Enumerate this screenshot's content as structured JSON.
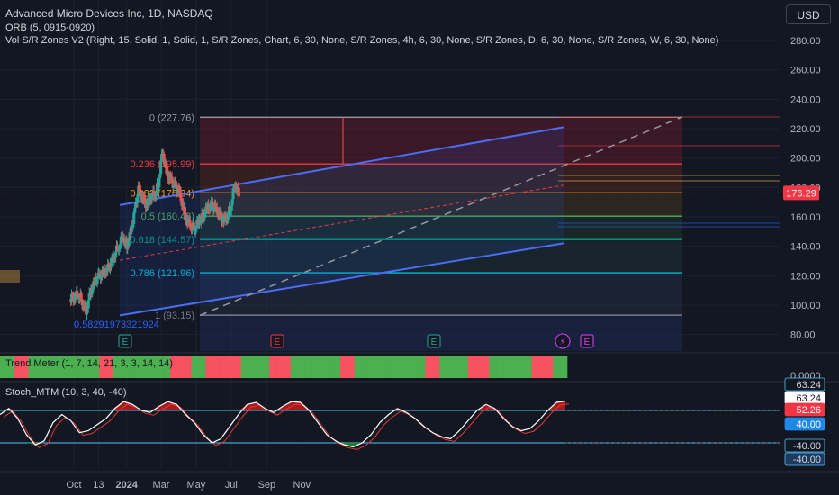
{
  "header": {
    "symbol_title": "Advanced Micro Devices Inc, 1D, NASDAQ",
    "indicator_1": "ORB (5, 0915-0920)",
    "indicator_2": "Vol S/R Zones V2 (Right, 15, Solid, 1, Solid, 1, S/R Zones, Chart, 6, 30, None, S/R Zones, 4h, 6, 30, None, S/R Zones, D, 6, 30, None, S/R Zones, W, 6, 30, None)"
  },
  "currency_button": "USD",
  "colors": {
    "background": "#131722",
    "up_candle": "#26a69a",
    "down_candle": "#ef5350",
    "channel": "#4a6cf7",
    "grid": "#1e222d",
    "trend_green": "#4caf50",
    "trend_red": "#f7525f",
    "stoch_fill_up": "#b71c1c",
    "stoch_fill_down": "#1b8a2a"
  },
  "chart_data": {
    "type": "candlestick",
    "symbol": "AMD",
    "interval": "1D",
    "exchange": "NASDAQ",
    "x_tick_labels": [
      "Oct",
      "13",
      "2024",
      "Mar",
      "May",
      "Jul",
      "Sep",
      "Nov"
    ],
    "y_tick_labels": [
      "280.00",
      "260.00",
      "240.00",
      "220.00",
      "200.00",
      "180.00",
      "160.00",
      "140.00",
      "120.00",
      "100.00",
      "80.00"
    ],
    "ylim": [
      72,
      292
    ],
    "last_price": "176.29",
    "fib_levels": [
      {
        "label": "0 (227.76)",
        "value": 227.76,
        "color": "#9598a1"
      },
      {
        "label": "0.236 (195.99)",
        "value": 195.99,
        "color": "#f23645"
      },
      {
        "label": "0.382 (176.34)",
        "value": 176.34,
        "color": "#ff9800"
      },
      {
        "label": "0.5 (160.46)",
        "value": 160.46,
        "color": "#4caf50"
      },
      {
        "label": "0.618 (144.57)",
        "value": 144.57,
        "color": "#089981"
      },
      {
        "label": "0.786 (121.96)",
        "value": 121.96,
        "color": "#00bcd4"
      },
      {
        "label": "1 (93.15)",
        "value": 93.15,
        "color": "#787b86"
      }
    ],
    "extra_label": "0.58291973321924",
    "event_markers": [
      "E",
      "E",
      "E",
      "E"
    ],
    "lightning_marker": "⚡",
    "price_series": [
      [
        "2023-09-25",
        104
      ],
      [
        "2023-10-02",
        106
      ],
      [
        "2023-10-09",
        108
      ],
      [
        "2023-10-16",
        103
      ],
      [
        "2023-10-23",
        96
      ],
      [
        "2023-10-30",
        108
      ],
      [
        "2023-11-06",
        115
      ],
      [
        "2023-11-13",
        119
      ],
      [
        "2023-11-20",
        121
      ],
      [
        "2023-11-27",
        123
      ],
      [
        "2023-12-04",
        128
      ],
      [
        "2023-12-11",
        134
      ],
      [
        "2023-12-18",
        140
      ],
      [
        "2023-12-26",
        147
      ],
      [
        "2024-01-02",
        140
      ],
      [
        "2024-01-08",
        148
      ],
      [
        "2024-01-16",
        164
      ],
      [
        "2024-01-22",
        178
      ],
      [
        "2024-01-29",
        173
      ],
      [
        "2024-02-05",
        168
      ],
      [
        "2024-02-12",
        174
      ],
      [
        "2024-02-20",
        176
      ],
      [
        "2024-02-26",
        183
      ],
      [
        "2024-03-04",
        205
      ],
      [
        "2024-03-11",
        190
      ],
      [
        "2024-03-18",
        185
      ],
      [
        "2024-03-25",
        181
      ],
      [
        "2024-04-01",
        178
      ],
      [
        "2024-04-08",
        168
      ],
      [
        "2024-04-15",
        158
      ],
      [
        "2024-04-22",
        155
      ],
      [
        "2024-04-29",
        152
      ],
      [
        "2024-05-06",
        158
      ],
      [
        "2024-05-13",
        160
      ],
      [
        "2024-05-20",
        165
      ],
      [
        "2024-05-28",
        168
      ],
      [
        "2024-06-03",
        166
      ],
      [
        "2024-06-10",
        162
      ],
      [
        "2024-06-17",
        158
      ],
      [
        "2024-06-24",
        160
      ],
      [
        "2024-07-01",
        167
      ],
      [
        "2024-07-08",
        183
      ],
      [
        "2024-07-15",
        176
      ]
    ]
  },
  "trend_meter": {
    "label": "Trend Meter (1, 7, 14, 21, 3, 3, 14, 14)",
    "zero_label": "0.0000",
    "states": [
      "G",
      "G",
      "R",
      "R",
      "G",
      "G",
      "G",
      "G",
      "G",
      "G",
      "G",
      "G",
      "G",
      "G",
      "R",
      "R",
      "G",
      "G",
      "G",
      "G",
      "G",
      "G",
      "G",
      "G",
      "R",
      "R",
      "R",
      "G",
      "G",
      "R",
      "R",
      "R",
      "R",
      "R",
      "G",
      "G",
      "G",
      "G",
      "R",
      "R",
      "R",
      "G",
      "G",
      "G",
      "G",
      "G",
      "G",
      "G",
      "R",
      "R",
      "G",
      "G",
      "G",
      "G",
      "G",
      "G",
      "G",
      "G",
      "G",
      "G",
      "R",
      "R",
      "G",
      "G",
      "G",
      "G",
      "R",
      "R",
      "R",
      "G",
      "G",
      "G",
      "G",
      "G",
      "G",
      "R",
      "R",
      "R",
      "G",
      "G"
    ]
  },
  "stoch_mtm": {
    "label": "Stoch_MTM (10, 3, 40, -40)",
    "axis_labels": [
      "63.24",
      "63.24",
      "52.26",
      "40.00",
      "-40.00",
      "-40.00"
    ],
    "upper_band": 40,
    "lower_band": -40,
    "values": [
      30,
      45,
      20,
      -20,
      -45,
      -35,
      10,
      30,
      15,
      -15,
      -10,
      5,
      20,
      45,
      62,
      55,
      40,
      35,
      50,
      62,
      55,
      30,
      10,
      -20,
      -40,
      -30,
      0,
      30,
      55,
      60,
      45,
      35,
      50,
      62,
      60,
      40,
      10,
      -20,
      -35,
      -45,
      -50,
      -40,
      -20,
      10,
      30,
      45,
      35,
      20,
      0,
      -15,
      -25,
      -30,
      -10,
      15,
      40,
      55,
      45,
      20,
      0,
      -10,
      -5,
      15,
      40,
      60,
      63
    ]
  }
}
